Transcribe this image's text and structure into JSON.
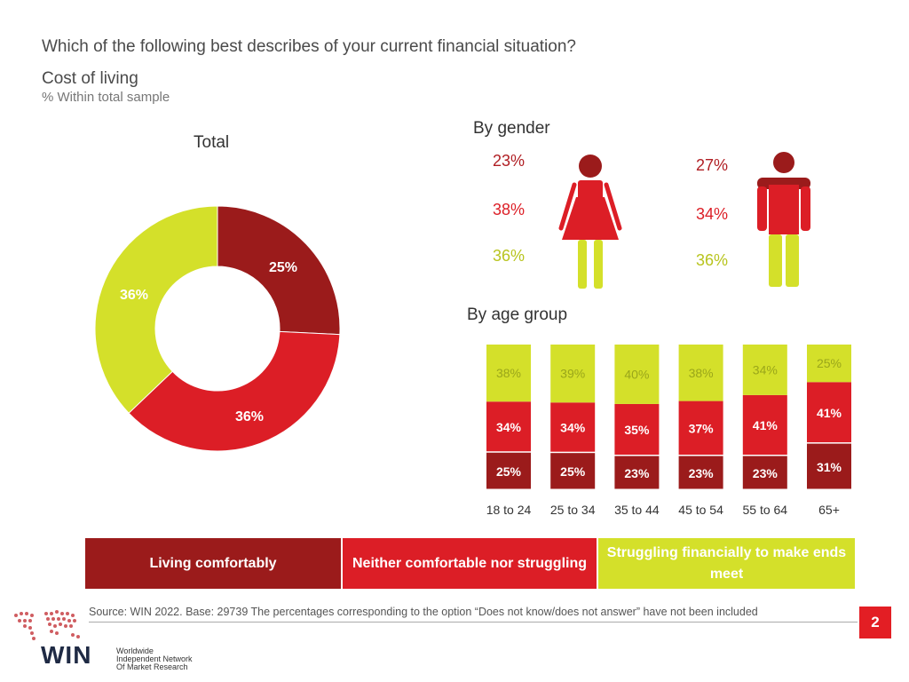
{
  "title": "Which of the following best describes of your current financial situation?",
  "subtitle": "Cost of living",
  "note": "% Within total sample",
  "colors": {
    "comfortable": "#9b1b1b",
    "neither": "#dc1e26",
    "struggling": "#d4e02a"
  },
  "chart_data": [
    {
      "type": "pie",
      "title": "Total",
      "categories": [
        "Living comfortably",
        "Neither comfortable nor struggling",
        "Struggling financially to make ends meet"
      ],
      "values": [
        25,
        36,
        36
      ],
      "labels": [
        "25%",
        "36%",
        "36%"
      ]
    },
    {
      "type": "bar",
      "title": "By gender",
      "categories": [
        "Female",
        "Male"
      ],
      "series": [
        {
          "name": "Living comfortably",
          "values": [
            23,
            27
          ],
          "labels": [
            "23%",
            "27%"
          ]
        },
        {
          "name": "Neither comfortable nor struggling",
          "values": [
            38,
            34
          ],
          "labels": [
            "38%",
            "34%"
          ]
        },
        {
          "name": "Struggling financially to make ends meet",
          "values": [
            36,
            36
          ],
          "labels": [
            "36%",
            "36%"
          ]
        }
      ]
    },
    {
      "type": "bar",
      "title": "By age group",
      "stacked": true,
      "categories": [
        "18 to 24",
        "25 to 34",
        "35 to 44",
        "45 to 54",
        "55 to 64",
        "65+"
      ],
      "series": [
        {
          "name": "Living comfortably",
          "values": [
            25,
            25,
            23,
            23,
            23,
            31
          ],
          "labels": [
            "25%",
            "25%",
            "23%",
            "23%",
            "23%",
            "31%"
          ]
        },
        {
          "name": "Neither comfortable nor struggling",
          "values": [
            34,
            34,
            35,
            37,
            41,
            41
          ],
          "labels": [
            "34%",
            "34%",
            "35%",
            "37%",
            "41%",
            "41%"
          ]
        },
        {
          "name": "Struggling financially to make ends meet",
          "values": [
            38,
            39,
            40,
            38,
            34,
            25
          ],
          "labels": [
            "38%",
            "39%",
            "40%",
            "38%",
            "34%",
            "25%"
          ]
        }
      ]
    }
  ],
  "legend": [
    "Living comfortably",
    "Neither comfortable nor struggling",
    "Struggling financially to make ends meet"
  ],
  "source": {
    "prefix": "Source: WIN 2022. Base: 29739",
    "text": " The percentages corresponding to the option “Does not know/does not answer” have not been included"
  },
  "logo": {
    "name": "WIN",
    "tagline": [
      "Worldwide",
      "Independent Network",
      "Of Market Research"
    ]
  },
  "page_number": "2"
}
